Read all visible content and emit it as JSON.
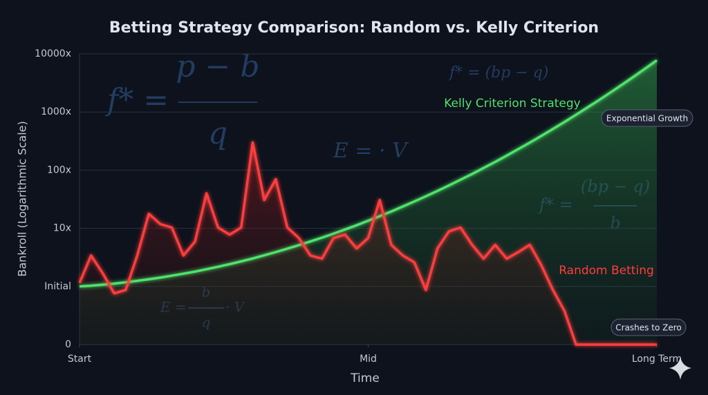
{
  "chart_data": {
    "type": "line",
    "title": "Betting Strategy Comparison: Random vs. Kelly Criterion",
    "x_label": "Time",
    "y_label": "Bankroll (Logarithmic Scale)",
    "log_y": true,
    "grid": true,
    "xlim": [
      0,
      100
    ],
    "xticks": [
      {
        "value": 0,
        "label": "Start"
      },
      {
        "value": 50,
        "label": "Mid"
      },
      {
        "value": 100,
        "label": "Long Term"
      }
    ],
    "ylim": [
      0.1,
      10000
    ],
    "yticks": [
      {
        "value": 0.1,
        "label": "0"
      },
      {
        "value": 1,
        "label": "Initial"
      },
      {
        "value": 10,
        "label": "10x"
      },
      {
        "value": 100,
        "label": "100x"
      },
      {
        "value": 1000,
        "label": "1000x"
      },
      {
        "value": 10000,
        "label": "10000x"
      }
    ],
    "x": [
      0,
      2,
      4,
      6,
      8,
      10,
      12,
      14,
      16,
      18,
      20,
      22,
      24,
      26,
      28,
      30,
      32,
      34,
      36,
      38,
      40,
      42,
      44,
      46,
      48,
      50,
      52,
      54,
      56,
      58,
      60,
      62,
      64,
      66,
      68,
      70,
      72,
      74,
      76,
      78,
      80,
      82,
      84,
      86,
      88,
      90,
      92,
      94,
      96,
      98,
      100
    ],
    "series": [
      {
        "name": "Kelly Criterion Strategy",
        "color": "#4fe36a",
        "values": [
          1,
          1.03,
          1.07,
          1.12,
          1.18,
          1.25,
          1.33,
          1.42,
          1.53,
          1.66,
          1.8,
          1.98,
          2.18,
          2.42,
          2.7,
          3.03,
          3.43,
          3.9,
          4.46,
          5.13,
          5.94,
          6.92,
          8.09,
          9.55,
          11.3,
          13.5,
          16.2,
          19.5,
          23.7,
          29,
          35.6,
          44,
          54.7,
          68.5,
          86.1,
          109,
          139,
          178,
          230,
          298,
          389,
          512,
          675,
          897,
          1200,
          1610,
          2180,
          2970,
          4060,
          5600,
          7760
        ]
      },
      {
        "name": "Random Betting",
        "color": "#ff3d3d",
        "values": [
          1.15,
          3.4,
          1.7,
          0.76,
          0.87,
          3.4,
          17.8,
          11.8,
          10.3,
          3.4,
          5.9,
          40,
          10.3,
          7.8,
          10.3,
          300,
          30.7,
          70,
          10.3,
          6.8,
          3.4,
          3,
          6.8,
          7.8,
          4.5,
          6.8,
          30.7,
          5.2,
          3.4,
          2.6,
          0.87,
          4.5,
          8.9,
          10.3,
          5.2,
          3,
          5.2,
          3,
          3.9,
          5.2,
          2.3,
          0.87,
          0.38,
          0.1,
          0.1,
          0.1,
          0.1,
          0.1,
          0.1,
          0.1,
          0.1
        ]
      }
    ],
    "annotations": [
      "Exponential Growth",
      "Crashes to Zero"
    ],
    "formulas": [
      {
        "lhs": "f* =",
        "num": "p − b",
        "den": "q"
      },
      {
        "lhs": "f* = (bp − q)"
      },
      {
        "lhs": "E = · V"
      },
      {
        "lhs": "f* =",
        "num": "(bp − q)",
        "den": "b"
      },
      {
        "lhs": "E =",
        "num": "b",
        "den": "q",
        "rhs": "· V"
      }
    ]
  }
}
